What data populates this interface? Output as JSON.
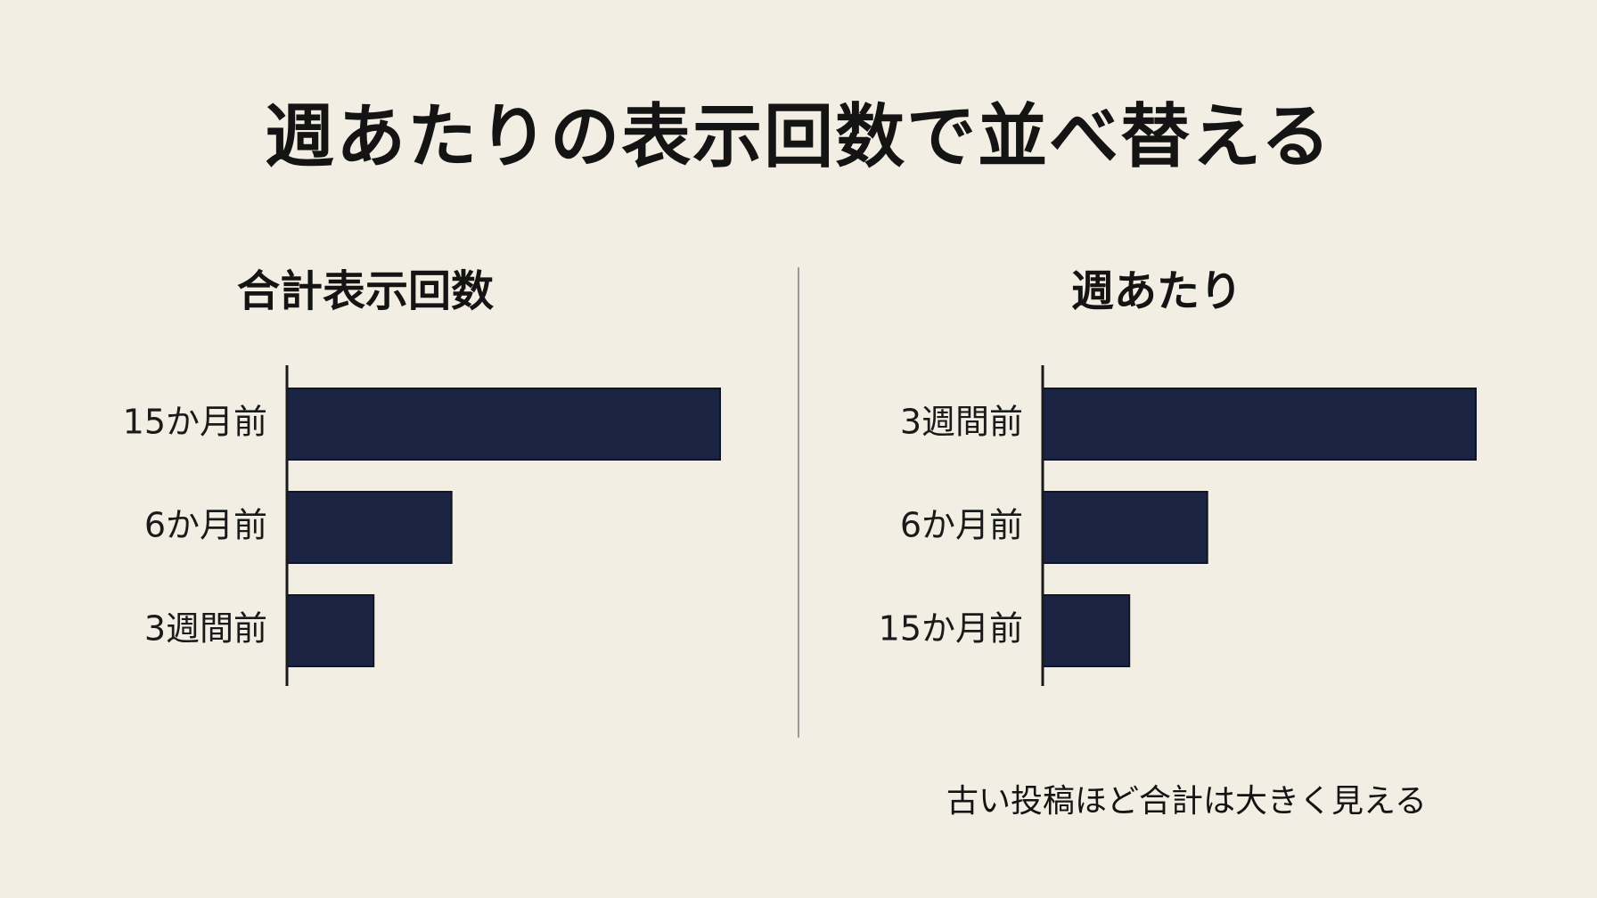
{
  "title": "週あたりの表示回数で並べ替える",
  "footnote": "古い投稿ほど合計は大きく見える",
  "colors": {
    "background": "#f3eee4",
    "bar": "#1b2442",
    "text": "#141414",
    "divider": "#9a9a9a"
  },
  "chart_data": [
    {
      "type": "bar",
      "orientation": "horizontal",
      "title": "合計表示回数",
      "categories": [
        "15か月前",
        "6か月前",
        "3週間前"
      ],
      "values": [
        100,
        38,
        20
      ],
      "xlim": [
        0,
        100
      ],
      "xlabel": "",
      "ylabel": "",
      "grid": false
    },
    {
      "type": "bar",
      "orientation": "horizontal",
      "title": "週あたり",
      "categories": [
        "3週間前",
        "6か月前",
        "15か月前"
      ],
      "values": [
        100,
        38,
        20
      ],
      "xlim": [
        0,
        100
      ],
      "xlabel": "",
      "ylabel": "",
      "grid": false
    }
  ]
}
